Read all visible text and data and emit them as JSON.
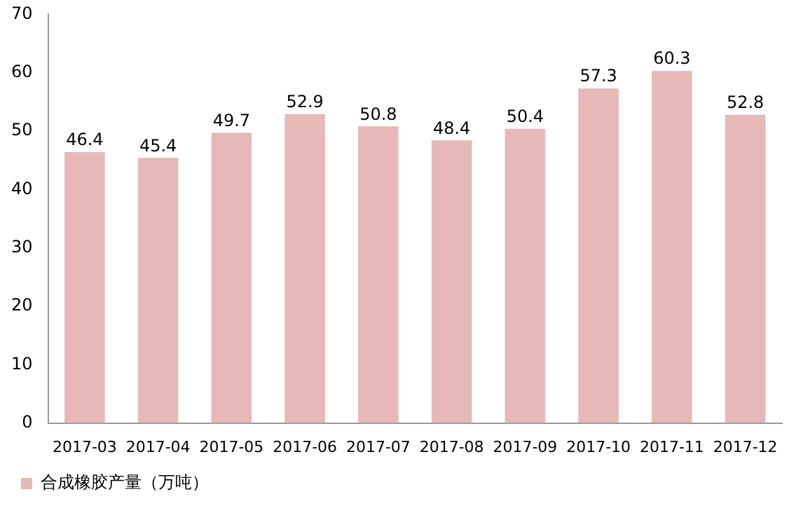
{
  "chart_data": {
    "type": "bar",
    "categories": [
      "2017-03",
      "2017-04",
      "2017-05",
      "2017-06",
      "2017-07",
      "2017-08",
      "2017-09",
      "2017-10",
      "2017-11",
      "2017-12"
    ],
    "series": [
      {
        "name": "合成橡胶产量（万吨）",
        "color": "#e6b9b8",
        "values": [
          46.4,
          45.4,
          49.7,
          52.9,
          50.8,
          48.4,
          50.4,
          57.3,
          60.3,
          52.8
        ]
      }
    ],
    "ylim": [
      0,
      70
    ],
    "yticks": [
      0,
      10,
      20,
      30,
      40,
      50,
      60,
      70
    ],
    "grid": false,
    "legend": "bottom",
    "data_labels": true
  }
}
